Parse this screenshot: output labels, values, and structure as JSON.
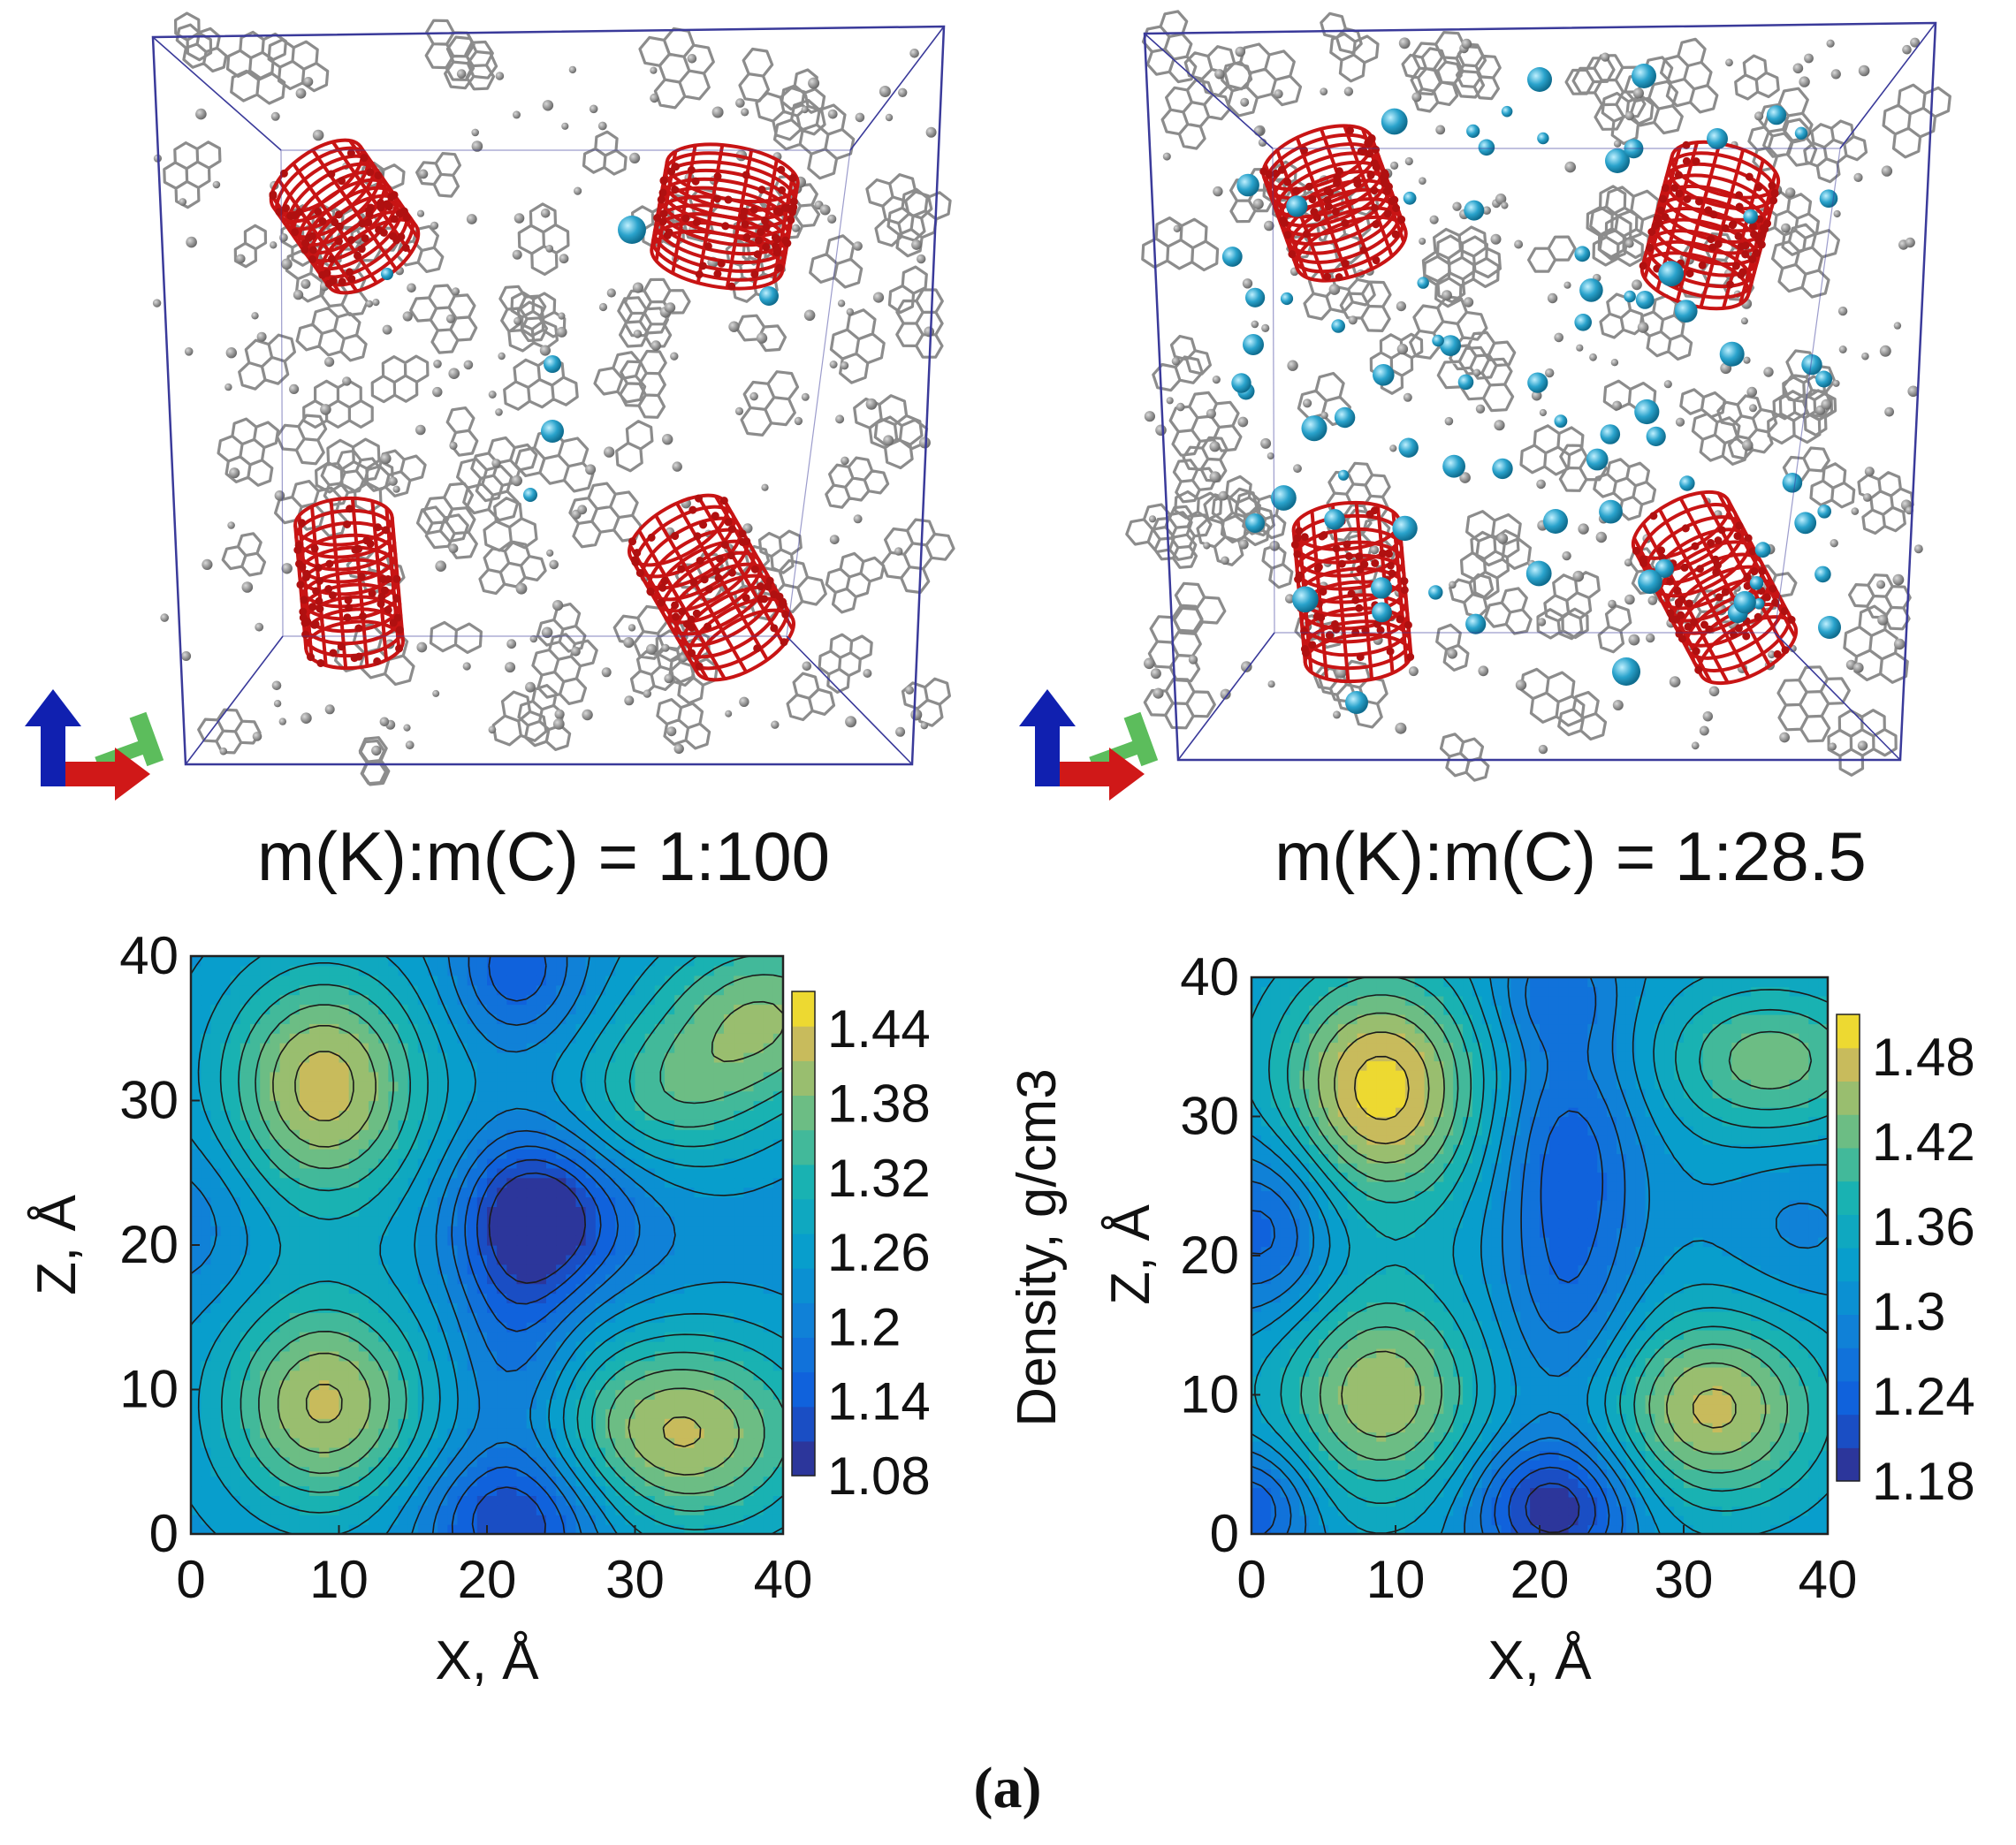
{
  "figure": {
    "caption": "(a)",
    "panels": [
      {
        "id": "left",
        "ratio_label": "m(K):m(C) = 1:100",
        "colorbar_ticks": [
          "1.44",
          "1.38",
          "1.32",
          "1.26",
          "1.2",
          "1.14",
          "1.08"
        ],
        "colorbar_label": "Density, g/cm3"
      },
      {
        "id": "right",
        "ratio_label": "m(K):m(C) = 1:28.5",
        "colorbar_ticks": [
          "1.48",
          "1.42",
          "1.36",
          "1.3",
          "1.24",
          "1.18"
        ]
      }
    ],
    "colors": {
      "carbon": "#8c8c8c",
      "nanotube": "#c81414",
      "potassium": "#2aa3cc",
      "box_edge": "#3a3a9a",
      "axis_x": "#d01818",
      "axis_y": "#1aa01a",
      "axis_z": "#1020b0"
    }
  },
  "chart_data": [
    {
      "type": "heatmap",
      "title": "m(K):m(C) = 1:100",
      "xlabel": "X, Å",
      "ylabel": "Z, Å",
      "xlim": [
        0,
        40
      ],
      "ylim": [
        0,
        40
      ],
      "x_ticks": [
        "0",
        "10",
        "20",
        "30",
        "40"
      ],
      "y_ticks": [
        "0",
        "10",
        "20",
        "30",
        "40"
      ],
      "colorbar": {
        "label": "Density, g/cm3",
        "min": 1.08,
        "max": 1.47,
        "ticks": [
          1.08,
          1.14,
          1.2,
          1.26,
          1.32,
          1.38,
          1.44
        ]
      },
      "base_density": 1.23,
      "features": [
        {
          "x": 9,
          "z": 31,
          "value": 1.43,
          "sx": 5.0,
          "sz": 6.0
        },
        {
          "x": 39,
          "z": 36,
          "value": 1.38,
          "sx": 5.5,
          "sz": 4.5
        },
        {
          "x": 32,
          "z": 30,
          "value": 1.33,
          "sx": 5.0,
          "sz": 4.0
        },
        {
          "x": 9,
          "z": 9,
          "value": 1.42,
          "sx": 5.0,
          "sz": 5.5
        },
        {
          "x": 33,
          "z": 7,
          "value": 1.42,
          "sx": 6.5,
          "sz": 5.0
        },
        {
          "x": 23,
          "z": 22,
          "value": 1.08,
          "sx": 3.5,
          "sz": 4.0
        },
        {
          "x": 22,
          "z": 1,
          "value": 1.1,
          "sx": 4.5,
          "sz": 3.5
        },
        {
          "x": 22,
          "z": 39,
          "value": 1.14,
          "sx": 3.0,
          "sz": 3.5
        },
        {
          "x": 0,
          "z": 22,
          "value": 1.19,
          "sx": 3.5,
          "sz": 4.0
        },
        {
          "x": 22,
          "z": 12,
          "value": 1.16,
          "sx": 3.0,
          "sz": 6.0
        },
        {
          "x": 28,
          "z": 22,
          "value": 1.19,
          "sx": 4.0,
          "sz": 4.0
        }
      ]
    },
    {
      "type": "heatmap",
      "title": "m(K):m(C) = 1:28.5",
      "xlabel": "X, Å",
      "ylabel": "Z, Å",
      "xlim": [
        0,
        40
      ],
      "ylim": [
        0,
        40
      ],
      "x_ticks": [
        "0",
        "10",
        "20",
        "30",
        "40"
      ],
      "y_ticks": [
        "0",
        "10",
        "20",
        "30",
        "40"
      ],
      "colorbar": {
        "label": "",
        "min": 1.18,
        "max": 1.51,
        "ticks": [
          1.18,
          1.24,
          1.3,
          1.36,
          1.42,
          1.48
        ]
      },
      "base_density": 1.32,
      "features": [
        {
          "x": 9,
          "z": 32,
          "value": 1.5,
          "sx": 5.0,
          "sz": 6.0
        },
        {
          "x": 36,
          "z": 34,
          "value": 1.43,
          "sx": 5.5,
          "sz": 4.0
        },
        {
          "x": 9,
          "z": 10,
          "value": 1.46,
          "sx": 5.0,
          "sz": 5.5
        },
        {
          "x": 32,
          "z": 9,
          "value": 1.47,
          "sx": 5.5,
          "sz": 5.0
        },
        {
          "x": 21,
          "z": 2,
          "value": 1.18,
          "sx": 4.0,
          "sz": 3.5
        },
        {
          "x": 22,
          "z": 28,
          "value": 1.24,
          "sx": 3.5,
          "sz": 6.0
        },
        {
          "x": 1,
          "z": 22,
          "value": 1.23,
          "sx": 3.5,
          "sz": 4.5
        },
        {
          "x": 0,
          "z": 2,
          "value": 1.22,
          "sx": 3.0,
          "sz": 3.0
        },
        {
          "x": 22,
          "z": 16,
          "value": 1.26,
          "sx": 3.5,
          "sz": 6.0
        },
        {
          "x": 21,
          "z": 39,
          "value": 1.26,
          "sx": 3.0,
          "sz": 3.0
        },
        {
          "x": 38,
          "z": 22,
          "value": 1.29,
          "sx": 3.5,
          "sz": 4.0
        }
      ]
    }
  ]
}
